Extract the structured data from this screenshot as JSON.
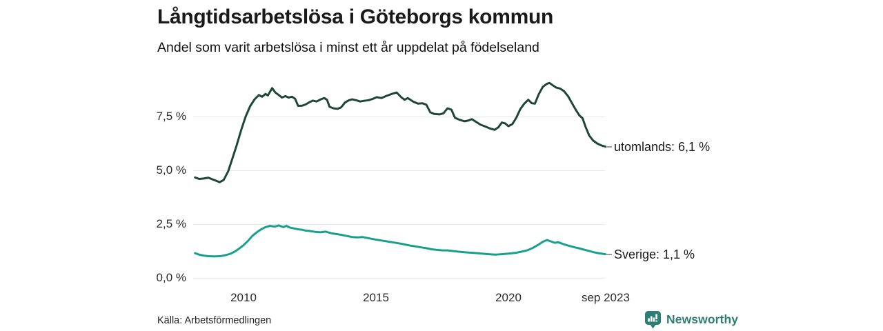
{
  "header": {
    "title": "Långtidsarbetslösa i Göteborgs kommun",
    "subtitle": "Andel som varit arbetslösa i minst ett år uppdelat på födelseland"
  },
  "footer": {
    "source": "Källa: Arbetsförmedlingen",
    "brand": "Newsworthy"
  },
  "colors": {
    "utomlands_line": "#1d4636",
    "sverige_line": "#17a08c",
    "gridline": "#e7e7e7",
    "brand_teal": "#2e7d74",
    "legend_dash": "#9a9a9a",
    "text": "#1a1a1a"
  },
  "chart_data": {
    "type": "line",
    "title": "Långtidsarbetslösa i Göteborgs kommun",
    "subtitle": "Andel som varit arbetslösa i minst ett år uppdelat på födelseland",
    "grid": "horizontal",
    "legend_position": "right-of-line-end",
    "x_unit": "decimal_year",
    "xlim": [
      2008.1,
      2023.75
    ],
    "ylim": [
      0,
      9.6
    ],
    "yticks": [
      {
        "value": 7.5,
        "label": "7,5 %"
      },
      {
        "value": 5.0,
        "label": "5,0 %"
      },
      {
        "value": 2.5,
        "label": "2,5 %"
      },
      {
        "value": 0.0,
        "label": "0,0 %"
      }
    ],
    "xticks": [
      {
        "value": 2010,
        "label": "2010"
      },
      {
        "value": 2015,
        "label": "2015"
      },
      {
        "value": 2020,
        "label": "2020"
      },
      {
        "value": 2023.67,
        "label": "sep 2023"
      }
    ],
    "series": [
      {
        "name": "utomlands",
        "color": "#1d4636",
        "end_value": 6.1,
        "end_label": "utomlands: 6,1 %",
        "points": [
          [
            2008.17,
            4.67
          ],
          [
            2008.33,
            4.6
          ],
          [
            2008.5,
            4.62
          ],
          [
            2008.67,
            4.66
          ],
          [
            2008.83,
            4.58
          ],
          [
            2009.0,
            4.5
          ],
          [
            2009.1,
            4.45
          ],
          [
            2009.25,
            4.55
          ],
          [
            2009.42,
            4.95
          ],
          [
            2009.58,
            5.55
          ],
          [
            2009.75,
            6.2
          ],
          [
            2009.92,
            6.9
          ],
          [
            2010.08,
            7.5
          ],
          [
            2010.25,
            7.98
          ],
          [
            2010.42,
            8.3
          ],
          [
            2010.58,
            8.5
          ],
          [
            2010.7,
            8.42
          ],
          [
            2010.83,
            8.55
          ],
          [
            2010.92,
            8.48
          ],
          [
            2011.08,
            8.82
          ],
          [
            2011.2,
            8.62
          ],
          [
            2011.33,
            8.5
          ],
          [
            2011.45,
            8.38
          ],
          [
            2011.58,
            8.45
          ],
          [
            2011.7,
            8.38
          ],
          [
            2011.83,
            8.42
          ],
          [
            2011.95,
            8.32
          ],
          [
            2012.06,
            8.0
          ],
          [
            2012.2,
            8.0
          ],
          [
            2012.34,
            8.06
          ],
          [
            2012.48,
            8.16
          ],
          [
            2012.62,
            8.24
          ],
          [
            2012.76,
            8.2
          ],
          [
            2012.92,
            8.3
          ],
          [
            2013.05,
            8.36
          ],
          [
            2013.15,
            8.28
          ],
          [
            2013.25,
            7.95
          ],
          [
            2013.4,
            7.88
          ],
          [
            2013.55,
            7.86
          ],
          [
            2013.68,
            7.92
          ],
          [
            2013.83,
            8.15
          ],
          [
            2013.97,
            8.25
          ],
          [
            2014.1,
            8.3
          ],
          [
            2014.25,
            8.26
          ],
          [
            2014.4,
            8.2
          ],
          [
            2014.55,
            8.23
          ],
          [
            2014.72,
            8.26
          ],
          [
            2014.88,
            8.32
          ],
          [
            2015.03,
            8.4
          ],
          [
            2015.2,
            8.36
          ],
          [
            2015.4,
            8.46
          ],
          [
            2015.6,
            8.55
          ],
          [
            2015.78,
            8.62
          ],
          [
            2015.95,
            8.4
          ],
          [
            2016.08,
            8.28
          ],
          [
            2016.2,
            8.36
          ],
          [
            2016.4,
            8.2
          ],
          [
            2016.58,
            8.1
          ],
          [
            2016.75,
            8.12
          ],
          [
            2016.9,
            8.05
          ],
          [
            2017.05,
            7.7
          ],
          [
            2017.2,
            7.62
          ],
          [
            2017.4,
            7.6
          ],
          [
            2017.55,
            7.65
          ],
          [
            2017.7,
            7.88
          ],
          [
            2017.85,
            7.82
          ],
          [
            2017.98,
            7.45
          ],
          [
            2018.15,
            7.35
          ],
          [
            2018.35,
            7.28
          ],
          [
            2018.5,
            7.32
          ],
          [
            2018.62,
            7.38
          ],
          [
            2018.78,
            7.25
          ],
          [
            2018.95,
            7.12
          ],
          [
            2019.1,
            7.05
          ],
          [
            2019.3,
            6.95
          ],
          [
            2019.48,
            6.88
          ],
          [
            2019.62,
            7.0
          ],
          [
            2019.75,
            7.22
          ],
          [
            2019.88,
            7.18
          ],
          [
            2020.0,
            7.05
          ],
          [
            2020.15,
            7.15
          ],
          [
            2020.3,
            7.45
          ],
          [
            2020.45,
            7.85
          ],
          [
            2020.6,
            8.1
          ],
          [
            2020.75,
            8.28
          ],
          [
            2020.88,
            8.12
          ],
          [
            2021.0,
            8.1
          ],
          [
            2021.15,
            8.55
          ],
          [
            2021.3,
            8.88
          ],
          [
            2021.45,
            9.02
          ],
          [
            2021.55,
            9.06
          ],
          [
            2021.68,
            8.95
          ],
          [
            2021.8,
            8.85
          ],
          [
            2021.95,
            8.8
          ],
          [
            2022.1,
            8.68
          ],
          [
            2022.25,
            8.45
          ],
          [
            2022.4,
            8.12
          ],
          [
            2022.55,
            7.8
          ],
          [
            2022.68,
            7.55
          ],
          [
            2022.8,
            7.42
          ],
          [
            2022.92,
            7.0
          ],
          [
            2023.05,
            6.62
          ],
          [
            2023.2,
            6.38
          ],
          [
            2023.35,
            6.25
          ],
          [
            2023.5,
            6.16
          ],
          [
            2023.67,
            6.1
          ]
        ]
      },
      {
        "name": "Sverige",
        "color": "#17a08c",
        "end_value": 1.1,
        "end_label": "Sverige: 1,1 %",
        "points": [
          [
            2008.17,
            1.15
          ],
          [
            2008.33,
            1.08
          ],
          [
            2008.5,
            1.04
          ],
          [
            2008.67,
            1.01
          ],
          [
            2008.83,
            1.0
          ],
          [
            2009.0,
            1.0
          ],
          [
            2009.17,
            1.02
          ],
          [
            2009.33,
            1.06
          ],
          [
            2009.5,
            1.12
          ],
          [
            2009.67,
            1.22
          ],
          [
            2009.83,
            1.36
          ],
          [
            2010.0,
            1.52
          ],
          [
            2010.17,
            1.72
          ],
          [
            2010.33,
            1.95
          ],
          [
            2010.5,
            2.12
          ],
          [
            2010.67,
            2.26
          ],
          [
            2010.83,
            2.36
          ],
          [
            2011.0,
            2.42
          ],
          [
            2011.17,
            2.38
          ],
          [
            2011.33,
            2.44
          ],
          [
            2011.5,
            2.36
          ],
          [
            2011.62,
            2.42
          ],
          [
            2011.75,
            2.34
          ],
          [
            2011.9,
            2.3
          ],
          [
            2012.05,
            2.26
          ],
          [
            2012.2,
            2.24
          ],
          [
            2012.35,
            2.2
          ],
          [
            2012.5,
            2.18
          ],
          [
            2012.7,
            2.14
          ],
          [
            2012.9,
            2.12
          ],
          [
            2013.1,
            2.15
          ],
          [
            2013.3,
            2.08
          ],
          [
            2013.5,
            2.04
          ],
          [
            2013.7,
            2.0
          ],
          [
            2013.9,
            1.95
          ],
          [
            2014.1,
            1.9
          ],
          [
            2014.3,
            1.88
          ],
          [
            2014.5,
            1.9
          ],
          [
            2014.7,
            1.85
          ],
          [
            2014.9,
            1.8
          ],
          [
            2015.1,
            1.76
          ],
          [
            2015.3,
            1.72
          ],
          [
            2015.5,
            1.68
          ],
          [
            2015.7,
            1.64
          ],
          [
            2015.9,
            1.6
          ],
          [
            2016.1,
            1.55
          ],
          [
            2016.3,
            1.5
          ],
          [
            2016.5,
            1.46
          ],
          [
            2016.7,
            1.42
          ],
          [
            2016.9,
            1.38
          ],
          [
            2017.1,
            1.33
          ],
          [
            2017.3,
            1.3
          ],
          [
            2017.5,
            1.28
          ],
          [
            2017.7,
            1.28
          ],
          [
            2017.9,
            1.25
          ],
          [
            2018.1,
            1.22
          ],
          [
            2018.3,
            1.2
          ],
          [
            2018.5,
            1.18
          ],
          [
            2018.7,
            1.16
          ],
          [
            2018.9,
            1.14
          ],
          [
            2019.1,
            1.12
          ],
          [
            2019.3,
            1.1
          ],
          [
            2019.5,
            1.08
          ],
          [
            2019.7,
            1.1
          ],
          [
            2019.9,
            1.12
          ],
          [
            2020.1,
            1.14
          ],
          [
            2020.3,
            1.17
          ],
          [
            2020.5,
            1.22
          ],
          [
            2020.7,
            1.28
          ],
          [
            2020.9,
            1.38
          ],
          [
            2021.1,
            1.52
          ],
          [
            2021.3,
            1.68
          ],
          [
            2021.45,
            1.76
          ],
          [
            2021.6,
            1.7
          ],
          [
            2021.75,
            1.63
          ],
          [
            2021.88,
            1.66
          ],
          [
            2022.05,
            1.58
          ],
          [
            2022.2,
            1.52
          ],
          [
            2022.35,
            1.47
          ],
          [
            2022.5,
            1.42
          ],
          [
            2022.65,
            1.38
          ],
          [
            2022.8,
            1.33
          ],
          [
            2023.0,
            1.27
          ],
          [
            2023.2,
            1.2
          ],
          [
            2023.4,
            1.15
          ],
          [
            2023.67,
            1.1
          ]
        ]
      }
    ]
  }
}
